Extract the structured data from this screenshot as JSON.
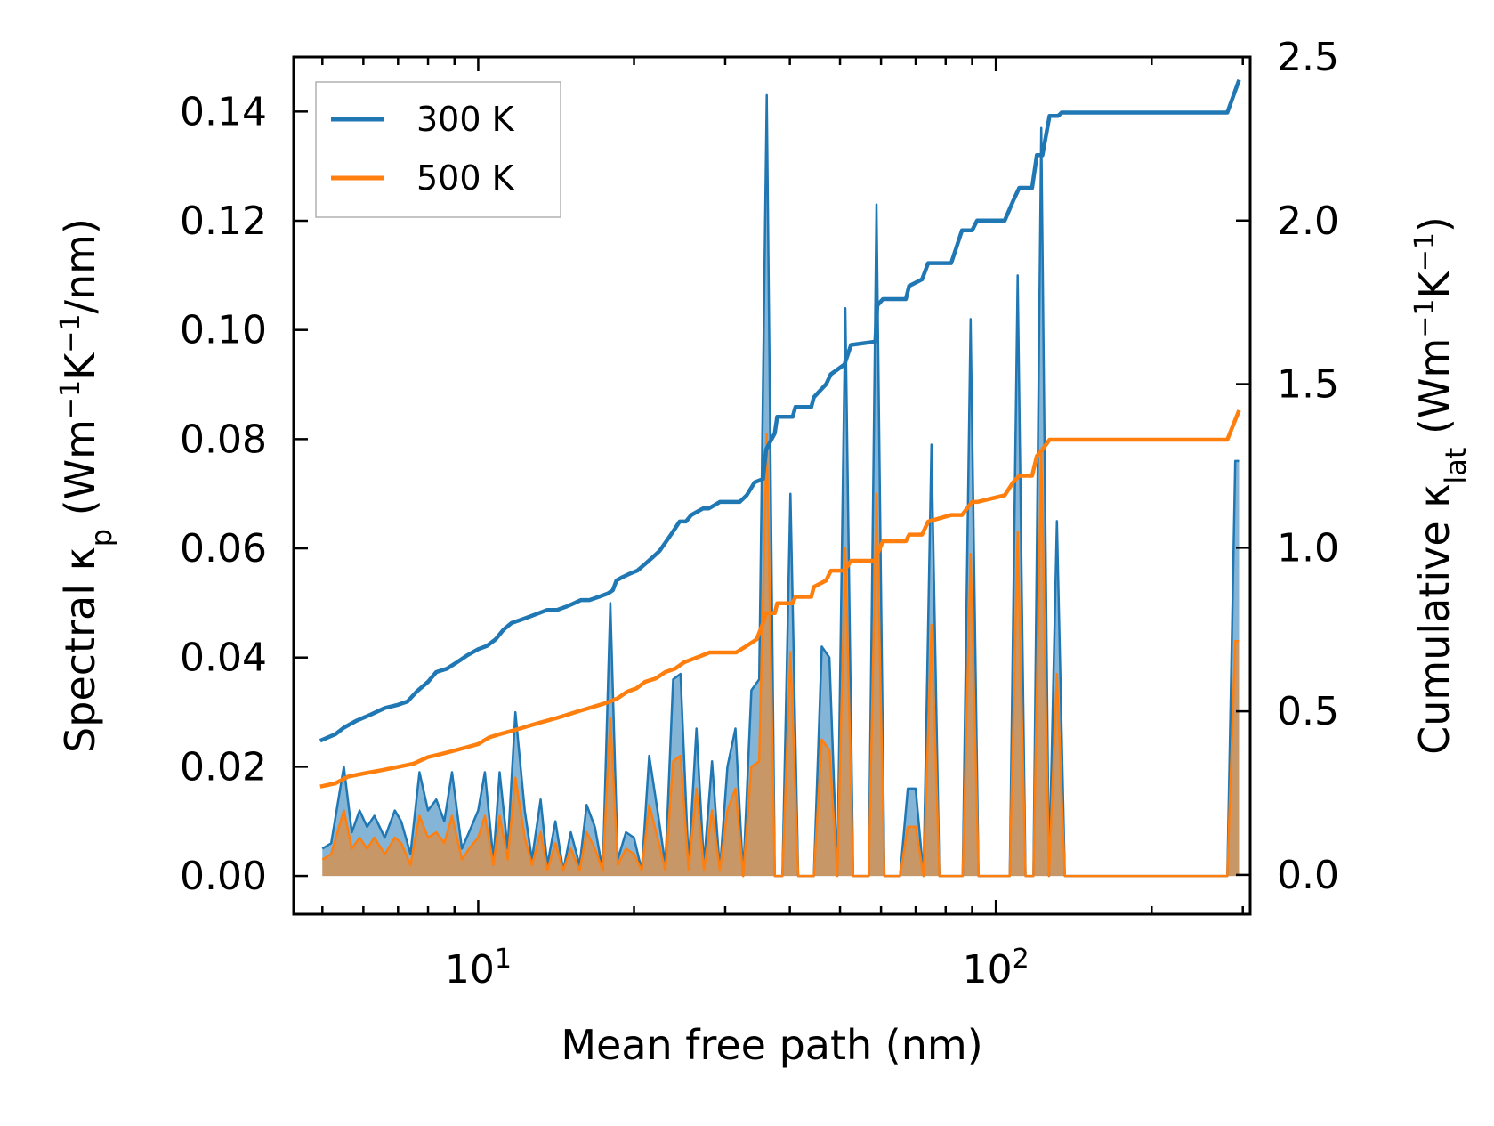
{
  "chart_data": {
    "type": "line",
    "title": "",
    "xlabel": "Mean free path (nm)",
    "ylabel_left": "Spectral κ",
    "ylabel_left_sub": "p",
    "ylabel_left_unit_parts": [
      " (Wm",
      "−1",
      "K",
      "−1",
      "/nm)"
    ],
    "ylabel_right": "Cumulative κ",
    "ylabel_right_sub": "lat",
    "ylabel_right_unit_parts": [
      " (Wm",
      "−1",
      "K",
      "−1",
      ")"
    ],
    "xscale": "log",
    "xlim": [
      4.4,
      310
    ],
    "ylim_left": [
      -0.007,
      0.15
    ],
    "ylim_right": [
      -0.12,
      2.5
    ],
    "x_tick_labels": [
      {
        "value": 10,
        "base": "10",
        "exp": "1"
      },
      {
        "value": 100,
        "base": "10",
        "exp": "2"
      }
    ],
    "y_left_ticks": [
      0.0,
      0.02,
      0.04,
      0.06,
      0.08,
      0.1,
      0.12,
      0.14
    ],
    "y_left_tick_labels": [
      "0.00",
      "0.02",
      "0.04",
      "0.06",
      "0.08",
      "0.10",
      "0.12",
      "0.14"
    ],
    "y_right_ticks": [
      0.0,
      0.5,
      1.0,
      1.5,
      2.0,
      2.5
    ],
    "y_right_tick_labels": [
      "0.0",
      "0.5",
      "1.0",
      "1.5",
      "2.0",
      "2.5"
    ],
    "legend": {
      "position": "top-left"
    },
    "series": [
      {
        "name": "300 K",
        "color": "#1f77b4",
        "spectral_x": [
          5.0,
          5.2,
          5.5,
          5.7,
          5.9,
          6.1,
          6.3,
          6.6,
          6.9,
          7.1,
          7.4,
          7.7,
          8.0,
          8.3,
          8.6,
          8.9,
          9.3,
          9.6,
          10.0,
          10.3,
          10.7,
          11.0,
          11.4,
          11.8,
          12.3,
          12.7,
          13.2,
          13.6,
          14.1,
          14.6,
          15.1,
          15.7,
          16.2,
          16.8,
          17.4,
          18.0,
          18.6,
          19.3,
          20.0,
          20.7,
          21.4,
          22.2,
          23.0,
          23.8,
          24.6,
          25.5,
          26.4,
          27.3,
          28.3,
          29.3,
          30.3,
          31.4,
          32.5,
          33.7,
          34.9,
          36.1,
          37.4,
          38.7,
          40.1,
          41.5,
          43.0,
          44.5,
          46.1,
          47.7,
          49.4,
          51.2,
          53.0,
          54.9,
          56.8,
          58.8,
          60.9,
          63.1,
          65.3,
          67.6,
          70.0,
          72.5,
          75.1,
          77.8,
          80.5,
          83.4,
          86.3,
          89.4,
          92.6,
          95.9,
          99.3,
          102.8,
          106.4,
          110.2,
          114.1,
          118.2,
          122.4,
          126.7,
          131.2,
          135.9,
          280.0,
          290.0,
          295.0
        ],
        "spectral_y": [
          0.005,
          0.006,
          0.02,
          0.008,
          0.012,
          0.009,
          0.011,
          0.007,
          0.012,
          0.01,
          0.004,
          0.019,
          0.012,
          0.014,
          0.01,
          0.019,
          0.005,
          0.008,
          0.012,
          0.019,
          0.003,
          0.019,
          0.005,
          0.03,
          0.012,
          0.003,
          0.014,
          0.002,
          0.01,
          0.001,
          0.008,
          0.002,
          0.013,
          0.009,
          0.001,
          0.05,
          0.003,
          0.008,
          0.007,
          0.001,
          0.022,
          0.012,
          0.002,
          0.036,
          0.037,
          0.002,
          0.027,
          0.002,
          0.021,
          0.001,
          0.02,
          0.027,
          0.0,
          0.034,
          0.036,
          0.143,
          0.0,
          0.0,
          0.07,
          0.0,
          0.0,
          0.0,
          0.042,
          0.04,
          0.0,
          0.104,
          0.0,
          0.0,
          0.0,
          0.123,
          0.0,
          0.0,
          0.0,
          0.016,
          0.016,
          0.0,
          0.079,
          0.0,
          0.0,
          0.0,
          0.0,
          0.102,
          0.0,
          0.0,
          0.0,
          0.0,
          0.0,
          0.11,
          0.0,
          0.0,
          0.137,
          0.0,
          0.065,
          0.0,
          0.0,
          0.076,
          0.076
        ],
        "cumulative_x": [
          4.95,
          5.3,
          5.5,
          5.8,
          6.2,
          6.6,
          7.0,
          7.3,
          7.6,
          8.0,
          8.3,
          8.7,
          9.1,
          9.5,
          10.0,
          10.4,
          10.8,
          11.2,
          11.6,
          12.1,
          12.6,
          13.1,
          13.6,
          14.2,
          14.8,
          15.3,
          15.8,
          16.4,
          17.1,
          17.8,
          18.2,
          18.5,
          19.0,
          19.6,
          20.3,
          21.0,
          21.7,
          22.4,
          23.1,
          23.8,
          24.5,
          25.2,
          25.8,
          26.5,
          27.2,
          27.9,
          28.6,
          29.3,
          30.0,
          31.0,
          32.0,
          33.0,
          34.2,
          35.5,
          36.0,
          37.4,
          37.8,
          40.5,
          41.0,
          44.0,
          44.5,
          47.0,
          48.0,
          51.0,
          52.5,
          58.5,
          59.0,
          60.5,
          67.0,
          68.0,
          72.0,
          74.0,
          82.0,
          86.0,
          90.0,
          92.0,
          104.0,
          108.0,
          111.0,
          117.5,
          120.0,
          123.0,
          127.0,
          132.0,
          134.0,
          280.0,
          295.0
        ],
        "cumulative_y": [
          0.41,
          0.43,
          0.45,
          0.47,
          0.49,
          0.51,
          0.52,
          0.53,
          0.56,
          0.59,
          0.62,
          0.63,
          0.65,
          0.67,
          0.69,
          0.7,
          0.72,
          0.75,
          0.77,
          0.78,
          0.79,
          0.8,
          0.81,
          0.81,
          0.82,
          0.83,
          0.84,
          0.84,
          0.85,
          0.86,
          0.87,
          0.9,
          0.91,
          0.92,
          0.93,
          0.95,
          0.97,
          0.99,
          1.02,
          1.05,
          1.08,
          1.08,
          1.1,
          1.11,
          1.12,
          1.12,
          1.13,
          1.14,
          1.14,
          1.14,
          1.14,
          1.16,
          1.2,
          1.21,
          1.3,
          1.35,
          1.4,
          1.4,
          1.43,
          1.43,
          1.46,
          1.5,
          1.53,
          1.56,
          1.62,
          1.63,
          1.74,
          1.76,
          1.76,
          1.8,
          1.82,
          1.87,
          1.87,
          1.97,
          1.97,
          2.0,
          2.0,
          2.06,
          2.1,
          2.1,
          2.2,
          2.2,
          2.32,
          2.32,
          2.33,
          2.33,
          2.43
        ]
      },
      {
        "name": "500 K",
        "color": "#ff7f0e",
        "spectral_x": [
          5.0,
          5.2,
          5.5,
          5.7,
          5.9,
          6.1,
          6.3,
          6.6,
          6.9,
          7.1,
          7.4,
          7.7,
          8.0,
          8.3,
          8.6,
          8.9,
          9.3,
          9.6,
          10.0,
          10.3,
          10.7,
          11.0,
          11.4,
          11.8,
          12.3,
          12.7,
          13.2,
          13.6,
          14.1,
          14.6,
          15.1,
          15.7,
          16.2,
          16.8,
          17.4,
          18.0,
          18.6,
          19.3,
          20.0,
          20.7,
          21.4,
          22.2,
          23.0,
          23.8,
          24.6,
          25.5,
          26.4,
          27.3,
          28.3,
          29.3,
          30.3,
          31.4,
          32.5,
          33.7,
          34.9,
          36.1,
          37.4,
          38.7,
          40.1,
          41.5,
          43.0,
          44.5,
          46.1,
          47.7,
          49.4,
          51.2,
          53.0,
          54.9,
          56.8,
          58.8,
          60.9,
          63.1,
          65.3,
          67.6,
          70.0,
          72.5,
          75.1,
          77.8,
          80.5,
          83.4,
          86.3,
          89.4,
          92.6,
          95.9,
          99.3,
          102.8,
          106.4,
          110.2,
          114.1,
          118.2,
          122.4,
          126.7,
          131.2,
          135.9,
          280.0,
          290.0,
          295.0
        ],
        "spectral_y": [
          0.003,
          0.004,
          0.012,
          0.005,
          0.007,
          0.005,
          0.007,
          0.004,
          0.007,
          0.006,
          0.002,
          0.011,
          0.007,
          0.008,
          0.006,
          0.011,
          0.003,
          0.005,
          0.007,
          0.011,
          0.002,
          0.011,
          0.003,
          0.018,
          0.007,
          0.002,
          0.008,
          0.001,
          0.006,
          0.001,
          0.005,
          0.001,
          0.008,
          0.005,
          0.001,
          0.029,
          0.002,
          0.005,
          0.004,
          0.001,
          0.013,
          0.007,
          0.001,
          0.021,
          0.022,
          0.001,
          0.016,
          0.001,
          0.012,
          0.001,
          0.012,
          0.016,
          0.0,
          0.02,
          0.021,
          0.081,
          0.0,
          0.0,
          0.041,
          0.0,
          0.0,
          0.0,
          0.025,
          0.023,
          0.0,
          0.06,
          0.0,
          0.0,
          0.0,
          0.07,
          0.0,
          0.0,
          0.0,
          0.009,
          0.009,
          0.0,
          0.046,
          0.0,
          0.0,
          0.0,
          0.0,
          0.059,
          0.0,
          0.0,
          0.0,
          0.0,
          0.0,
          0.063,
          0.0,
          0.0,
          0.078,
          0.0,
          0.037,
          0.0,
          0.0,
          0.043,
          0.043
        ],
        "cumulative_x": [
          4.95,
          5.3,
          5.6,
          6.0,
          6.5,
          7.0,
          7.5,
          8.0,
          8.5,
          9.0,
          9.5,
          10.0,
          10.5,
          11.0,
          11.6,
          12.2,
          12.8,
          13.5,
          14.2,
          14.9,
          15.6,
          16.4,
          17.2,
          18.0,
          18.6,
          19.4,
          20.2,
          21.0,
          22.0,
          23.0,
          24.0,
          25.0,
          26.0,
          27.0,
          28.0,
          29.0,
          30.0,
          31.5,
          33.0,
          34.5,
          35.5,
          36.0,
          37.4,
          37.8,
          40.5,
          41.0,
          44.0,
          44.5,
          47.0,
          48.0,
          51.0,
          52.5,
          58.5,
          59.0,
          60.5,
          67.0,
          68.0,
          72.0,
          74.0,
          82.0,
          86.0,
          90.0,
          92.0,
          104.0,
          108.0,
          111.0,
          117.5,
          120.0,
          123.0,
          127.0,
          132.0,
          134.0,
          280.0,
          295.0
        ],
        "cumulative_y": [
          0.27,
          0.28,
          0.3,
          0.31,
          0.32,
          0.33,
          0.34,
          0.36,
          0.37,
          0.38,
          0.39,
          0.4,
          0.42,
          0.43,
          0.44,
          0.45,
          0.46,
          0.47,
          0.48,
          0.49,
          0.5,
          0.51,
          0.52,
          0.53,
          0.54,
          0.56,
          0.57,
          0.59,
          0.6,
          0.62,
          0.63,
          0.65,
          0.66,
          0.67,
          0.68,
          0.68,
          0.68,
          0.68,
          0.7,
          0.72,
          0.77,
          0.8,
          0.8,
          0.83,
          0.83,
          0.85,
          0.85,
          0.88,
          0.9,
          0.93,
          0.93,
          0.96,
          0.96,
          0.98,
          1.02,
          1.02,
          1.04,
          1.04,
          1.08,
          1.1,
          1.1,
          1.14,
          1.14,
          1.16,
          1.2,
          1.22,
          1.22,
          1.28,
          1.3,
          1.33,
          1.33,
          1.33,
          1.33,
          1.42
        ]
      }
    ]
  }
}
